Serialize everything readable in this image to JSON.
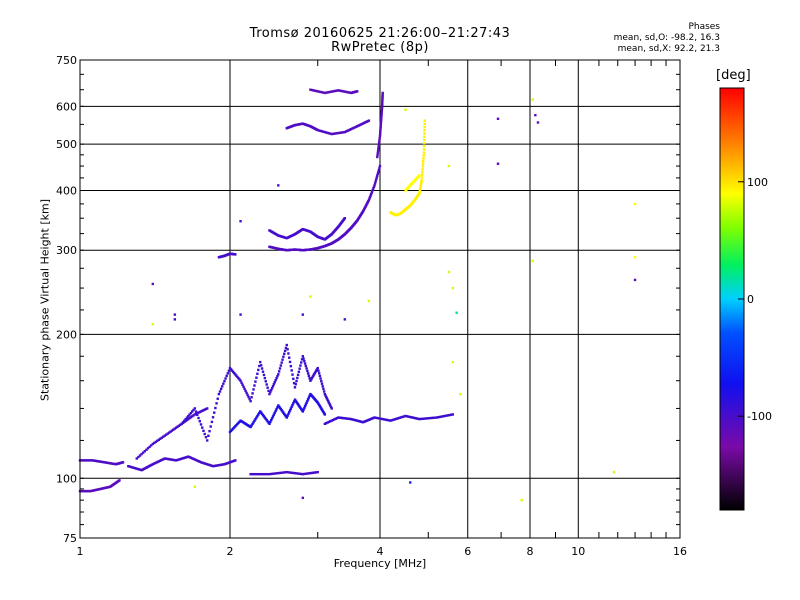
{
  "chart_data": {
    "type": "scatter",
    "title": "Tromsø 20160625 21:26:00–21:27:43",
    "subtitle": "RwPretec (8p)",
    "xlabel": "Frequency [MHz]",
    "ylabel": "Stationary phase Virtual Height [km]",
    "x_scale": "log",
    "y_scale": "log",
    "xlim": [
      1,
      16
    ],
    "ylim": [
      75,
      750
    ],
    "x_ticks": [
      1,
      2,
      4,
      6,
      8,
      10,
      16
    ],
    "x_minor_ticks": [
      3,
      5,
      7,
      9,
      11,
      12,
      13,
      14,
      15
    ],
    "y_ticks": [
      75,
      100,
      200,
      300,
      400,
      500,
      600,
      750
    ],
    "grid": true,
    "phase_stats": {
      "heading": "Phases",
      "o_mode": "mean, sd,O: -98.2, 16.3",
      "x_mode": "mean, sd,X:  92.2, 21.3"
    },
    "colorbar": {
      "label": "[deg]",
      "range": [
        -180,
        180
      ],
      "ticks": [
        100,
        0,
        -100
      ]
    },
    "traces": [
      {
        "mode": "O",
        "x": [
          1.0,
          1.05,
          1.1,
          1.15,
          1.2
        ],
        "y": [
          94,
          94,
          95,
          96,
          99
        ],
        "phase": -110
      },
      {
        "mode": "O",
        "x": [
          1.0,
          1.06,
          1.12,
          1.18,
          1.22
        ],
        "y": [
          109,
          109,
          108,
          107,
          108
        ],
        "phase": -105
      },
      {
        "mode": "O",
        "x": [
          1.25,
          1.33,
          1.4,
          1.48,
          1.56,
          1.65,
          1.75,
          1.85,
          1.95,
          2.05
        ],
        "y": [
          106,
          104,
          107,
          110,
          109,
          111,
          108,
          106,
          107,
          109
        ],
        "phase": -100
      },
      {
        "mode": "O",
        "x": [
          1.3,
          1.4,
          1.5,
          1.6,
          1.7,
          1.8
        ],
        "y": [
          110,
          118,
          124,
          130,
          136,
          140
        ],
        "phase": -100
      },
      {
        "mode": "O",
        "x": [
          1.6,
          1.7,
          1.8,
          1.9,
          2.0,
          2.1,
          2.2,
          2.3,
          2.4,
          2.5,
          2.6,
          2.7,
          2.8,
          2.9,
          3.0,
          3.1,
          3.2
        ],
        "y": [
          130,
          140,
          120,
          150,
          170,
          160,
          145,
          175,
          150,
          165,
          190,
          155,
          180,
          160,
          170,
          150,
          140
        ],
        "phase": -95
      },
      {
        "mode": "O",
        "x": [
          2.0,
          2.1,
          2.2,
          2.3,
          2.4,
          2.5,
          2.6,
          2.7,
          2.8,
          2.9,
          3.0,
          3.1
        ],
        "y": [
          125,
          132,
          128,
          138,
          130,
          142,
          134,
          146,
          138,
          150,
          144,
          136
        ],
        "phase": -80
      },
      {
        "mode": "O",
        "x": [
          2.2,
          2.4,
          2.6,
          2.8,
          3.0
        ],
        "y": [
          102,
          102,
          103,
          102,
          103
        ],
        "phase": -100
      },
      {
        "mode": "O",
        "x": [
          3.1,
          3.3,
          3.5,
          3.7,
          3.9,
          4.2,
          4.5,
          4.8,
          5.2,
          5.6
        ],
        "y": [
          130,
          134,
          133,
          131,
          134,
          132,
          135,
          133,
          134,
          136
        ],
        "phase": -95
      },
      {
        "mode": "O",
        "x": [
          2.4,
          2.5,
          2.6,
          2.7,
          2.8,
          2.9,
          3.0,
          3.1,
          3.2,
          3.3,
          3.4,
          3.5,
          3.6,
          3.7,
          3.8,
          3.9,
          4.0
        ],
        "y": [
          305,
          302,
          300,
          301,
          300,
          301,
          303,
          306,
          310,
          316,
          324,
          334,
          346,
          362,
          382,
          410,
          450
        ],
        "phase": -105
      },
      {
        "mode": "O",
        "x": [
          2.4,
          2.5,
          2.6,
          2.7,
          2.8,
          2.9,
          3.0,
          3.1,
          3.2,
          3.3,
          3.4
        ],
        "y": [
          330,
          322,
          318,
          324,
          332,
          328,
          320,
          316,
          324,
          336,
          350
        ],
        "phase": -100
      },
      {
        "mode": "O",
        "x": [
          2.6,
          2.7,
          2.8,
          2.9,
          3.0,
          3.2,
          3.4,
          3.6,
          3.8
        ],
        "y": [
          540,
          548,
          552,
          545,
          535,
          525,
          530,
          545,
          560
        ],
        "phase": -105
      },
      {
        "mode": "O",
        "x": [
          3.95,
          4.0,
          4.02,
          4.04,
          4.05
        ],
        "y": [
          470,
          520,
          560,
          600,
          640
        ],
        "phase": -110
      },
      {
        "mode": "O",
        "x": [
          2.9,
          3.1,
          3.3,
          3.5,
          3.6
        ],
        "y": [
          650,
          640,
          648,
          640,
          645
        ],
        "phase": -110
      },
      {
        "mode": "O",
        "x": [
          1.9,
          1.95,
          2.0,
          2.05
        ],
        "y": [
          290,
          292,
          295,
          294
        ],
        "phase": -100
      },
      {
        "mode": "X",
        "x": [
          4.2,
          4.3,
          4.4,
          4.5,
          4.6,
          4.7,
          4.8,
          4.85,
          4.9,
          4.92
        ],
        "y": [
          360,
          355,
          358,
          365,
          372,
          382,
          395,
          420,
          480,
          560
        ],
        "phase": 95
      },
      {
        "mode": "X",
        "x": [
          4.5,
          4.6,
          4.7,
          4.8
        ],
        "y": [
          400,
          410,
          420,
          430
        ],
        "phase": 90
      }
    ],
    "points": [
      {
        "x": 1.4,
        "y": 255,
        "phase": -110
      },
      {
        "x": 1.4,
        "y": 210,
        "phase": 80
      },
      {
        "x": 1.55,
        "y": 220,
        "phase": -100
      },
      {
        "x": 1.55,
        "y": 215,
        "phase": -100
      },
      {
        "x": 2.1,
        "y": 345,
        "phase": -100
      },
      {
        "x": 2.1,
        "y": 220,
        "phase": -100
      },
      {
        "x": 2.5,
        "y": 410,
        "phase": -100
      },
      {
        "x": 2.8,
        "y": 220,
        "phase": -100
      },
      {
        "x": 2.9,
        "y": 240,
        "phase": 80
      },
      {
        "x": 2.8,
        "y": 91,
        "phase": -110
      },
      {
        "x": 3.4,
        "y": 215,
        "phase": -100
      },
      {
        "x": 3.8,
        "y": 235,
        "phase": 80
      },
      {
        "x": 4.5,
        "y": 590,
        "phase": 80
      },
      {
        "x": 5.5,
        "y": 270,
        "phase": 80
      },
      {
        "x": 5.6,
        "y": 250,
        "phase": 80
      },
      {
        "x": 5.7,
        "y": 222,
        "phase": 20
      },
      {
        "x": 5.6,
        "y": 175,
        "phase": 80
      },
      {
        "x": 5.8,
        "y": 150,
        "phase": 80
      },
      {
        "x": 5.5,
        "y": 450,
        "phase": 80
      },
      {
        "x": 6.9,
        "y": 565,
        "phase": -110
      },
      {
        "x": 6.9,
        "y": 455,
        "phase": -110
      },
      {
        "x": 7.7,
        "y": 90,
        "phase": 80
      },
      {
        "x": 8.2,
        "y": 575,
        "phase": -110
      },
      {
        "x": 8.3,
        "y": 555,
        "phase": -110
      },
      {
        "x": 8.1,
        "y": 285,
        "phase": 80
      },
      {
        "x": 8.1,
        "y": 620,
        "phase": 80
      },
      {
        "x": 11.8,
        "y": 103,
        "phase": 80
      },
      {
        "x": 13.0,
        "y": 375,
        "phase": 90
      },
      {
        "x": 13.0,
        "y": 290,
        "phase": 90
      },
      {
        "x": 13.0,
        "y": 260,
        "phase": -110
      },
      {
        "x": 4.6,
        "y": 98,
        "phase": -60
      },
      {
        "x": 1.7,
        "y": 96,
        "phase": 80
      }
    ]
  }
}
